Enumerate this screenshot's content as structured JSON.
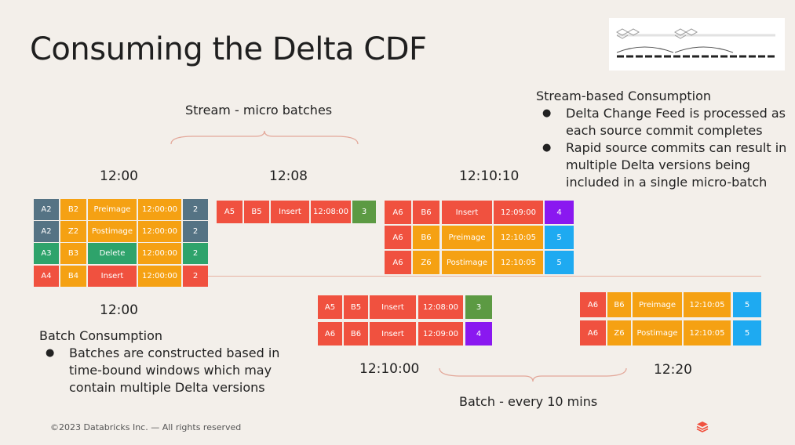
{
  "title": "Consuming the Delta CDF",
  "stream_label": "Stream - micro batches",
  "batch_label": "Batch - every 10 mins",
  "times": {
    "t1": "12:00",
    "t2": "12:08",
    "t3": "12:10:10",
    "t4": "12:00",
    "t5": "12:10:00",
    "t6": "12:20"
  },
  "stream_section": {
    "heading": "Stream-based Consumption",
    "bullets": [
      "Delta Change Feed is processed as each source commit completes",
      "Rapid source commits can result in multiple Delta versions being included in a single micro-batch"
    ]
  },
  "batch_section": {
    "heading": "Batch Consumption",
    "bullets": [
      "Batches are constructed based in time-bound windows which may contain multiple Delta versions"
    ]
  },
  "footer": "©2023 Databricks Inc. — All rights reserved",
  "colors": {
    "red": "#f0513f",
    "orange": "#f5a113",
    "slate": "#557384",
    "green": "#2ea36b",
    "olive": "#5c9a43",
    "purple": "#8a18f0",
    "blue": "#1eaaf1"
  },
  "tables": {
    "g1": [
      [
        "A2",
        "B2",
        "Preimage",
        "12:00:00",
        "2"
      ],
      [
        "A2",
        "Z2",
        "Postimage",
        "12:00:00",
        "2"
      ],
      [
        "A3",
        "B3",
        "Delete",
        "12:00:00",
        "2"
      ],
      [
        "A4",
        "B4",
        "Insert",
        "12:00:00",
        "2"
      ]
    ],
    "g2": [
      [
        "A5",
        "B5",
        "Insert",
        "12:08:00",
        "3"
      ]
    ],
    "g3": [
      [
        "A6",
        "B6",
        "Insert",
        "12:09:00",
        "4"
      ],
      [
        "A6",
        "B6",
        "Preimage",
        "12:10:05",
        "5"
      ],
      [
        "A6",
        "Z6",
        "Postimage",
        "12:10:05",
        "5"
      ]
    ],
    "g4": [
      [
        "A5",
        "B5",
        "Insert",
        "12:08:00",
        "3"
      ],
      [
        "A6",
        "B6",
        "Insert",
        "12:09:00",
        "4"
      ]
    ],
    "g5": [
      [
        "A6",
        "B6",
        "Preimage",
        "12:10:05",
        "5"
      ],
      [
        "A6",
        "Z6",
        "Postimage",
        "12:10:05",
        "5"
      ]
    ]
  }
}
